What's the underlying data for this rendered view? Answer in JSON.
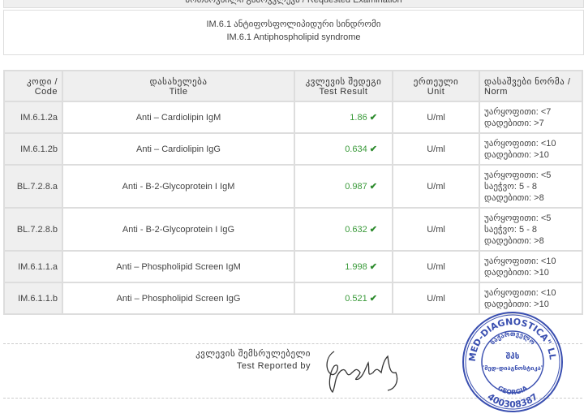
{
  "header": {
    "requested": "მოთხოვნილი გამოკვლევა / Requested Examination"
  },
  "exam": {
    "title_ka": "IM.6.1 ანტიფოსფოლიპიდური სინდრომი",
    "title_en": "IM.6.1 Antiphospholipid syndrome"
  },
  "table": {
    "headers": [
      {
        "ka": "კოდი /",
        "en": "Code"
      },
      {
        "ka": "დასახელება",
        "en": "Title"
      },
      {
        "ka": "კვლევის შედეგი",
        "en": "Test Result"
      },
      {
        "ka": "ერთეული",
        "en": "Unit"
      },
      {
        "ka": "დასაშვები ნორმა /",
        "en": "Norm"
      }
    ],
    "rows": [
      {
        "code": "IM.6.1.2a",
        "title": "Anti – Cardiolipin IgM",
        "result": "1.86",
        "unit": "U/ml",
        "norm": [
          "უარყოფითი: <7",
          "დადებითი: >7"
        ]
      },
      {
        "code": "IM.6.1.2b",
        "title": "Anti – Cardiolipin IgG",
        "result": "0.634",
        "unit": "U/ml",
        "norm": [
          "უარყოფითი: <10",
          "დადებითი: >10"
        ]
      },
      {
        "code": "BL.7.2.8.a",
        "title": "Anti - B-2-Glycoprotein I IgM",
        "result": "0.987",
        "unit": "U/ml",
        "norm": [
          "უარყოფითი: <5",
          "საეჭვო: 5 - 8",
          "დადებითი: >8"
        ]
      },
      {
        "code": "BL.7.2.8.b",
        "title": "Anti - B-2-Glycoprotein I IgG",
        "result": "0.632",
        "unit": "U/ml",
        "norm": [
          "უარყოფითი: <5",
          "საეჭვო: 5 - 8",
          "დადებითი: >8"
        ]
      },
      {
        "code": "IM.6.1.1.a",
        "title": "Anti – Phospholipid Screen IgM",
        "result": "1.998",
        "unit": "U/ml",
        "norm": [
          "უარყოფითი: <10",
          "დადებითი: >10"
        ]
      },
      {
        "code": "IM.6.1.1.b",
        "title": "Anti – Phospholipid Screen IgG",
        "result": "0.521",
        "unit": "U/ml",
        "norm": [
          "უარყოფითი: <10",
          "დადებითი: >10"
        ]
      }
    ],
    "check_icon": "check-icon",
    "result_color": "#3a9a3a"
  },
  "footer": {
    "reported_ka": "კვლევის შემსრულებელი",
    "reported_en": "Test Reported by",
    "stamp": {
      "text_outer": "\"MED-DIAGNOSTICA\" LLC",
      "text_inner": "საქართველო",
      "center1": "შპს",
      "center2": "\"მედ-დიაგნოსტიკა\"",
      "country": "GEORGIA",
      "number": "400308387",
      "color": "#3a4fb0"
    }
  }
}
